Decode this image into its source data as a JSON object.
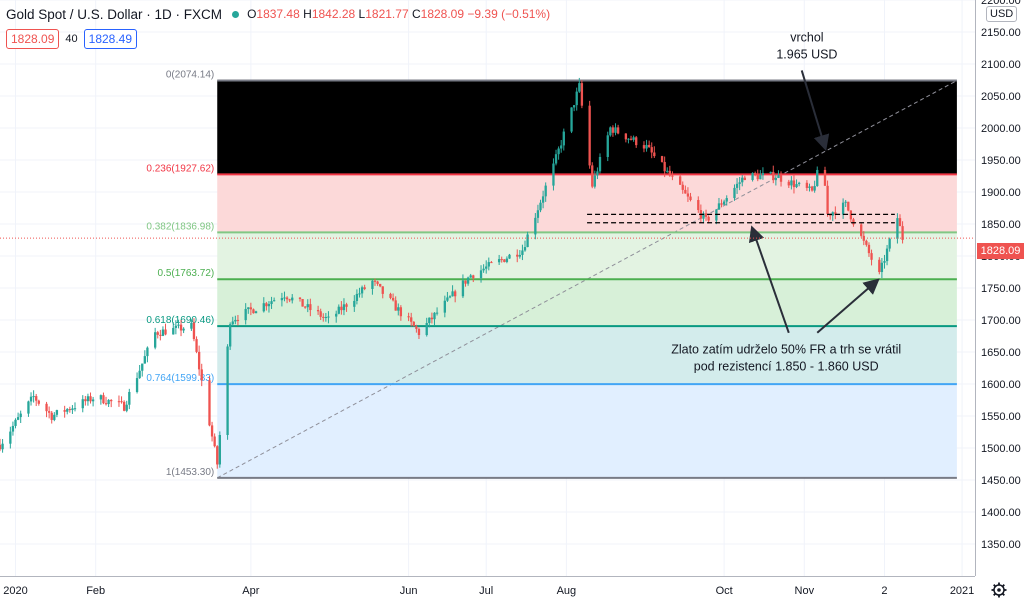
{
  "header": {
    "symbol": "Gold Spot / U.S. Dollar · 1D · FXCM",
    "open_label": "O",
    "open": "1837.48",
    "high_label": "H",
    "high": "1842.28",
    "low_label": "L",
    "low": "1821.77",
    "close_label": "C",
    "close": "1828.09",
    "change": "−9.39 (−0.51%)"
  },
  "quote": {
    "bid": "1828.09",
    "spread": "40",
    "ask": "1828.49"
  },
  "currency": "USD",
  "last_price": "1828.09",
  "colors": {
    "up": "#26a69a",
    "down": "#ef5350",
    "accent": "#2962ff"
  },
  "chart_data": {
    "type": "candlestick",
    "x_range": [
      "2019-12-26",
      "2021-01-06"
    ],
    "ylim": [
      1300,
      2200
    ],
    "y_ticks": [
      1350,
      1400,
      1450,
      1500,
      1550,
      1600,
      1650,
      1700,
      1750,
      1800,
      1850,
      1900,
      1950,
      2000,
      2050,
      2100,
      2150,
      2200
    ],
    "x_ticks": [
      {
        "label": "2020",
        "date": "2020-01-01"
      },
      {
        "label": "Feb",
        "date": "2020-02-01"
      },
      {
        "label": "Apr",
        "date": "2020-04-01"
      },
      {
        "label": "Jun",
        "date": "2020-06-01"
      },
      {
        "label": "Jul",
        "date": "2020-07-01"
      },
      {
        "label": "Aug",
        "date": "2020-08-01"
      },
      {
        "label": "Oct",
        "date": "2020-10-01"
      },
      {
        "label": "Nov",
        "date": "2020-11-01"
      },
      {
        "label": "2",
        "date": "2020-12-02"
      },
      {
        "label": "2021",
        "date": "2021-01-01"
      }
    ],
    "price_path": [
      [
        "2019-12-26",
        1505
      ],
      [
        "2020-01-08",
        1580
      ],
      [
        "2020-01-15",
        1550
      ],
      [
        "2020-02-01",
        1580
      ],
      [
        "2020-02-12",
        1565
      ],
      [
        "2020-02-24",
        1680
      ],
      [
        "2020-03-09",
        1690
      ],
      [
        "2020-03-19",
        1475
      ],
      [
        "2020-03-24",
        1700
      ],
      [
        "2020-04-14",
        1740
      ],
      [
        "2020-05-01",
        1700
      ],
      [
        "2020-05-18",
        1760
      ],
      [
        "2020-06-05",
        1680
      ],
      [
        "2020-06-25",
        1770
      ],
      [
        "2020-07-15",
        1810
      ],
      [
        "2020-07-27",
        1940
      ],
      [
        "2020-08-06",
        2065
      ],
      [
        "2020-08-11",
        1910
      ],
      [
        "2020-08-18",
        2000
      ],
      [
        "2020-09-01",
        1970
      ],
      [
        "2020-09-24",
        1855
      ],
      [
        "2020-10-09",
        1925
      ],
      [
        "2020-10-21",
        1925
      ],
      [
        "2020-11-04",
        1900
      ],
      [
        "2020-11-08",
        1955
      ],
      [
        "2020-11-10",
        1865
      ],
      [
        "2020-11-17",
        1880
      ],
      [
        "2020-11-30",
        1770
      ],
      [
        "2020-12-07",
        1860
      ],
      [
        "2020-12-09",
        1828
      ]
    ],
    "fibonacci": {
      "start_date": "2020-03-19",
      "end_date": "2020-12-30",
      "levels": [
        {
          "ratio": "1",
          "price": "1453.30",
          "value": 1453.3,
          "color": "#787b86",
          "fill": "#e6e6ea"
        },
        {
          "ratio": "0.764",
          "price": "1599.83",
          "value": 1599.83,
          "color": "#42a5f5",
          "fill": "#e1efff"
        },
        {
          "ratio": "0.618",
          "price": "1690.46",
          "value": 1690.46,
          "color": "#089981",
          "fill": "#d3ecec"
        },
        {
          "ratio": "0.5",
          "price": "1763.72",
          "value": 1763.72,
          "color": "#4caf50",
          "fill": "#d7f0d8"
        },
        {
          "ratio": "0.382",
          "price": "1836.98",
          "value": 1836.98,
          "color": "#81c784",
          "fill": "#e3f3e2"
        },
        {
          "ratio": "0.236",
          "price": "1927.62",
          "value": 1927.62,
          "color": "#f23645",
          "fill": "#fcd9d9"
        },
        {
          "ratio": "0",
          "price": "2074.14",
          "value": 2074.14,
          "color": "#787b86",
          "fill": null
        }
      ],
      "trend_line": {
        "from": [
          "2020-03-19",
          1453.3
        ],
        "to": [
          "2020-12-30",
          2074.14
        ]
      }
    },
    "resistance_lines": [
      {
        "from": "2020-08-09",
        "to": "2020-12-06",
        "value": 1865
      },
      {
        "from": "2020-08-09",
        "to": "2020-12-06",
        "value": 1852
      }
    ],
    "annotations": [
      {
        "lines": [
          "vrchol",
          "1.965 USD"
        ],
        "date": "2020-11-02",
        "value": 2135,
        "arrow": {
          "from": [
            "2020-10-31",
            2090
          ],
          "to": [
            "2020-11-09",
            1970
          ]
        }
      },
      {
        "lines": [
          "Zlato zatím udrželo 50% FR a trh se vrátil",
          "pod rezistencí 1.850 - 1.860 USD"
        ],
        "date": "2020-10-25",
        "value": 1648,
        "arrows": [
          {
            "from": [
              "2020-10-26",
              1680
            ],
            "to": [
              "2020-10-12",
              1842
            ]
          },
          {
            "from": [
              "2020-11-06",
              1680
            ],
            "to": [
              "2020-11-29",
              1761
            ]
          }
        ]
      }
    ]
  }
}
